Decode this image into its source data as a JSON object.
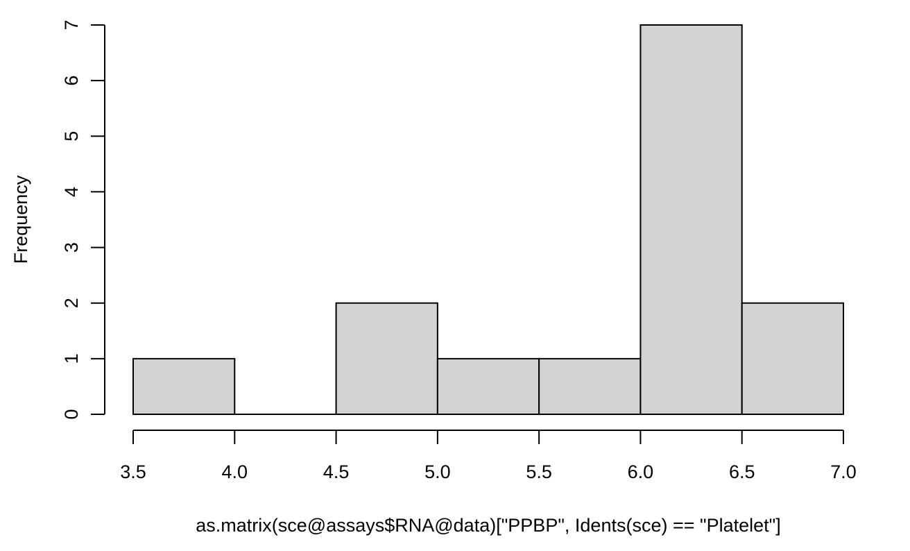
{
  "chart_data": {
    "type": "bar",
    "subtype": "histogram",
    "title": "",
    "xlabel": "as.matrix(sce@assays$RNA@data)[\"PPBP\", Idents(sce) == \"Platelet\"]",
    "ylabel": "Frequency",
    "bins": [
      {
        "start": 3.5,
        "end": 4.0,
        "count": 1
      },
      {
        "start": 4.0,
        "end": 4.5,
        "count": 0
      },
      {
        "start": 4.5,
        "end": 5.0,
        "count": 2
      },
      {
        "start": 5.0,
        "end": 5.5,
        "count": 1
      },
      {
        "start": 5.5,
        "end": 6.0,
        "count": 1
      },
      {
        "start": 6.0,
        "end": 6.5,
        "count": 7
      },
      {
        "start": 6.5,
        "end": 7.0,
        "count": 2
      }
    ],
    "xlim": [
      3.5,
      7.0
    ],
    "ylim": [
      0,
      7
    ],
    "x_ticks": [
      "3.5",
      "4.0",
      "4.5",
      "5.0",
      "5.5",
      "6.0",
      "6.5",
      "7.0"
    ],
    "y_ticks": [
      "0",
      "1",
      "2",
      "3",
      "4",
      "5",
      "6",
      "7"
    ],
    "bar_fill": "#d3d3d3",
    "bar_stroke": "#000000",
    "grid": false,
    "legend": "none"
  }
}
